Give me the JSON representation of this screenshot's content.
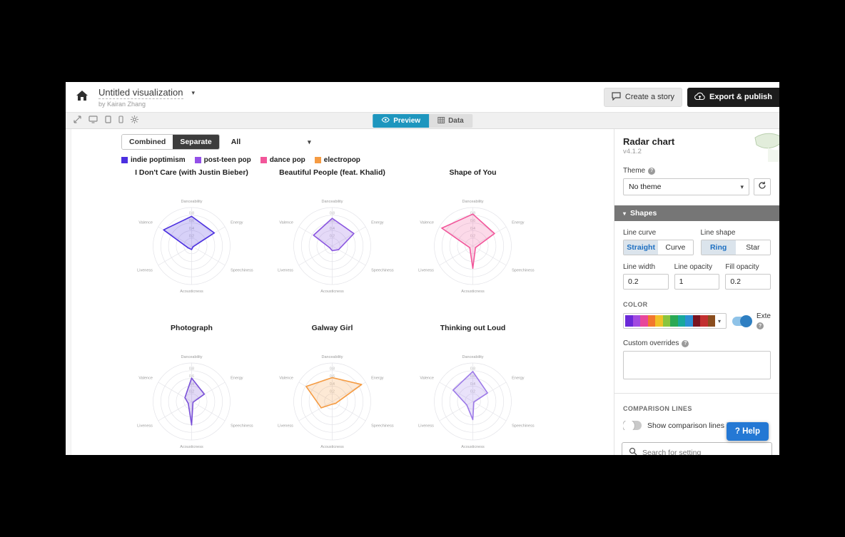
{
  "header": {
    "title": "Untitled visualization",
    "byline": "by Kairan Zhang",
    "create_story_label": "Create a story",
    "export_label": "Export & publish"
  },
  "toolbar": {
    "preview_label": "Preview",
    "data_label": "Data"
  },
  "preview": {
    "mode_combined": "Combined",
    "mode_separate": "Separate",
    "filter_value": "All",
    "legend": [
      {
        "label": "indie poptimism",
        "color": "#4b2fe0"
      },
      {
        "label": "post-teen pop",
        "color": "#9350e8"
      },
      {
        "label": "dance pop",
        "color": "#f2569a"
      },
      {
        "label": "electropop",
        "color": "#f59b42"
      }
    ]
  },
  "chart_data": {
    "type": "radar",
    "axes": [
      "Danceability",
      "Energy",
      "Speechiness",
      "Acousticness",
      "Liveness",
      "Valence"
    ],
    "ring_ticks": [
      0.2,
      0.4,
      0.6,
      0.8
    ],
    "value_range": [
      0,
      1
    ],
    "grid": true,
    "layout": "3x2 small multiples",
    "charts": [
      {
        "title": "I Don't Care (with Justin Bieber)",
        "genre": "indie poptimism",
        "color": "#4b2fe0",
        "values": [
          0.77,
          0.68,
          0.04,
          0.09,
          0.1,
          0.84
        ]
      },
      {
        "title": "Beautiful People (feat. Khalid)",
        "genre": "post-teen pop",
        "color": "#8a55e0",
        "values": [
          0.72,
          0.65,
          0.19,
          0.12,
          0.08,
          0.56
        ]
      },
      {
        "title": "Shape of You",
        "genre": "dance pop",
        "color": "#f2569a",
        "values": [
          0.83,
          0.65,
          0.08,
          0.58,
          0.09,
          0.93
        ]
      },
      {
        "title": "Photograph",
        "genre": "post-teen pop",
        "color": "#7a50d8",
        "values": [
          0.61,
          0.38,
          0.04,
          0.61,
          0.1,
          0.2
        ]
      },
      {
        "title": "Galway Girl",
        "genre": "electropop",
        "color": "#f59b42",
        "values": [
          0.62,
          0.88,
          0.1,
          0.07,
          0.33,
          0.78
        ]
      },
      {
        "title": "Thinking out Loud",
        "genre": "post-teen pop",
        "color": "#9d7ae8",
        "values": [
          0.78,
          0.44,
          0.03,
          0.47,
          0.18,
          0.59
        ]
      }
    ]
  },
  "sidebar": {
    "template_name": "Radar chart",
    "version": "v4.1.2",
    "theme_label": "Theme",
    "theme_value": "No theme",
    "shapes_header": "Shapes",
    "line_curve_label": "Line curve",
    "line_shape_label": "Line shape",
    "straight": "Straight",
    "curve": "Curve",
    "ring": "Ring",
    "star": "Star",
    "line_width_label": "Line width",
    "line_opacity_label": "Line opacity",
    "fill_opacity_label": "Fill opacity",
    "line_width_value": "0.2",
    "line_opacity_value": "1",
    "fill_opacity_value": "0.2",
    "color_section": "COLOR",
    "palette": [
      "#6a29d8",
      "#a24ae0",
      "#e8479b",
      "#f2772e",
      "#f0c028",
      "#8ac53e",
      "#2aa954",
      "#18a89c",
      "#2c8fd4",
      "#7a1420",
      "#c23030",
      "#8a4d1e"
    ],
    "extend_label": "Exte",
    "custom_overrides_label": "Custom overrides",
    "comparison_section": "COMPARISON LINES",
    "comparison_toggle_label": "Show comparison lines in grid mode",
    "help_label": "? Help",
    "search_placeholder": "Search for setting"
  }
}
